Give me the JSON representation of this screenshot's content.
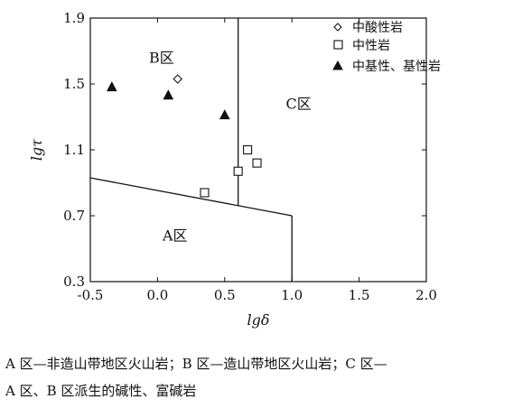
{
  "chart_data": {
    "type": "scatter",
    "xlabel": "lgδ",
    "ylabel": "lgτ",
    "xlim": [
      -0.5,
      2.0
    ],
    "ylim": [
      0.3,
      1.9
    ],
    "xticks": [
      -0.5,
      0.0,
      0.5,
      1.0,
      1.5,
      2.0
    ],
    "yticks": [
      0.3,
      0.7,
      1.1,
      1.5,
      1.9
    ],
    "xtick_labels": [
      "-0.5",
      "0.0",
      "0.5",
      "1.0",
      "1.5",
      "2.0"
    ],
    "ytick_labels": [
      "0.3",
      "0.7",
      "1.1",
      "1.5",
      "1.9"
    ],
    "grid": false,
    "legend_position": "top-right",
    "series": [
      {
        "name": "中酸性岩",
        "marker": "diamond-open",
        "points": [
          [
            0.15,
            1.53
          ]
        ]
      },
      {
        "name": "中性岩",
        "marker": "square-open",
        "points": [
          [
            0.35,
            0.84
          ],
          [
            0.6,
            0.97
          ],
          [
            0.67,
            1.1
          ],
          [
            0.74,
            1.02
          ]
        ]
      },
      {
        "name": "中基性、基性岩",
        "marker": "triangle-filled",
        "points": [
          [
            -0.34,
            1.48
          ],
          [
            0.08,
            1.43
          ],
          [
            0.5,
            1.31
          ]
        ]
      }
    ],
    "boundaries": [
      {
        "points": [
          [
            -0.5,
            0.93
          ],
          [
            1.0,
            0.7
          ]
        ]
      },
      {
        "points": [
          [
            1.0,
            0.7
          ],
          [
            1.0,
            0.3
          ]
        ]
      },
      {
        "points": [
          [
            0.6,
            0.76
          ],
          [
            0.6,
            1.9
          ]
        ]
      }
    ],
    "regions": [
      {
        "label": "A区",
        "x": 0.13,
        "y": 0.55
      },
      {
        "label": "B区",
        "x": 0.03,
        "y": 1.63
      },
      {
        "label": "C区",
        "x": 1.05,
        "y": 1.35
      }
    ]
  },
  "caption": {
    "line1": "A 区—非造山带地区火山岩；B 区—造山带地区火山岩；C 区—",
    "line2": "A 区、B 区派生的碱性、富碱岩"
  }
}
